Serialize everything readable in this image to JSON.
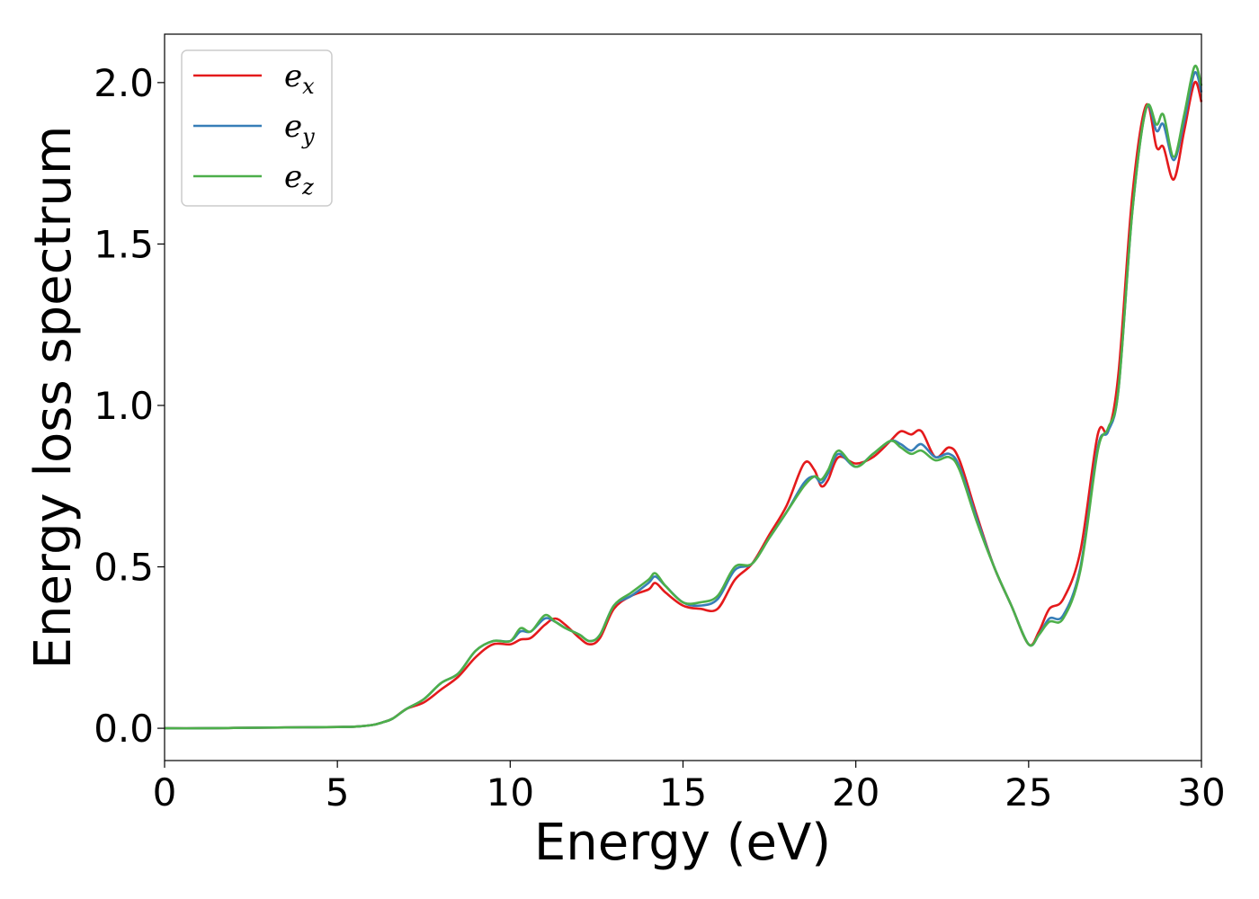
{
  "chart_data": {
    "type": "line",
    "title": "",
    "xlabel": "Energy (eV)",
    "ylabel": "Energy loss spectrum",
    "xlim": [
      0,
      30
    ],
    "ylim": [
      -0.1,
      2.15
    ],
    "xticks": [
      0,
      5,
      10,
      15,
      20,
      25,
      30
    ],
    "xtick_labels": [
      "0",
      "5",
      "10",
      "15",
      "20",
      "25",
      "30"
    ],
    "yticks": [
      0.0,
      0.5,
      1.0,
      1.5,
      2.0
    ],
    "ytick_labels": [
      "0.0",
      "0.5",
      "1.0",
      "1.5",
      "2.0"
    ],
    "grid": false,
    "legend_position": "upper-left",
    "x": [
      0,
      1,
      2,
      3,
      4,
      5,
      5.5,
      6,
      6.3,
      6.6,
      7,
      7.5,
      8,
      8.5,
      9,
      9.5,
      10,
      10.3,
      10.6,
      11,
      11.3,
      11.6,
      12,
      12.3,
      12.6,
      13,
      13.5,
      14,
      14.2,
      14.5,
      15,
      15.5,
      16,
      16.5,
      17,
      17.5,
      18,
      18.5,
      18.8,
      19,
      19.2,
      19.5,
      20,
      20.5,
      21,
      21.3,
      21.6,
      21.9,
      22.3,
      22.7,
      23,
      23.5,
      24,
      24.5,
      25,
      25.3,
      25.6,
      26,
      26.5,
      27,
      27.3,
      27.6,
      28,
      28.4,
      28.7,
      28.9,
      29.2,
      29.5,
      29.8,
      30
    ],
    "series": [
      {
        "name": "e_x",
        "label_base": "e",
        "label_sub": "x",
        "color": "#e41a1c",
        "values": [
          0,
          0,
          0.001,
          0.002,
          0.003,
          0.004,
          0.005,
          0.01,
          0.018,
          0.03,
          0.06,
          0.08,
          0.12,
          0.16,
          0.22,
          0.26,
          0.26,
          0.275,
          0.28,
          0.32,
          0.34,
          0.32,
          0.28,
          0.26,
          0.28,
          0.37,
          0.41,
          0.43,
          0.45,
          0.42,
          0.38,
          0.37,
          0.37,
          0.46,
          0.51,
          0.6,
          0.69,
          0.82,
          0.8,
          0.75,
          0.77,
          0.84,
          0.82,
          0.84,
          0.89,
          0.92,
          0.91,
          0.92,
          0.84,
          0.87,
          0.83,
          0.66,
          0.5,
          0.38,
          0.26,
          0.3,
          0.37,
          0.4,
          0.55,
          0.91,
          0.92,
          1.1,
          1.65,
          1.93,
          1.8,
          1.8,
          1.7,
          1.85,
          2.0,
          1.94
        ]
      },
      {
        "name": "e_y",
        "label_base": "e",
        "label_sub": "y",
        "color": "#377eb8",
        "values": [
          0,
          0,
          0.001,
          0.002,
          0.003,
          0.004,
          0.005,
          0.01,
          0.018,
          0.03,
          0.06,
          0.09,
          0.14,
          0.17,
          0.24,
          0.27,
          0.27,
          0.3,
          0.3,
          0.34,
          0.33,
          0.31,
          0.29,
          0.27,
          0.29,
          0.38,
          0.41,
          0.45,
          0.47,
          0.44,
          0.39,
          0.38,
          0.4,
          0.49,
          0.51,
          0.59,
          0.67,
          0.76,
          0.78,
          0.76,
          0.79,
          0.85,
          0.81,
          0.85,
          0.89,
          0.88,
          0.86,
          0.88,
          0.84,
          0.85,
          0.81,
          0.65,
          0.5,
          0.38,
          0.26,
          0.29,
          0.34,
          0.35,
          0.5,
          0.87,
          0.92,
          1.05,
          1.6,
          1.92,
          1.85,
          1.87,
          1.76,
          1.88,
          2.03,
          1.97
        ]
      },
      {
        "name": "e_z",
        "label_base": "e",
        "label_sub": "z",
        "color": "#4daf4a",
        "values": [
          0,
          0,
          0.001,
          0.002,
          0.003,
          0.004,
          0.005,
          0.01,
          0.018,
          0.03,
          0.06,
          0.09,
          0.14,
          0.17,
          0.24,
          0.27,
          0.27,
          0.31,
          0.3,
          0.35,
          0.33,
          0.31,
          0.29,
          0.27,
          0.29,
          0.38,
          0.42,
          0.46,
          0.48,
          0.44,
          0.39,
          0.39,
          0.41,
          0.5,
          0.51,
          0.59,
          0.67,
          0.75,
          0.78,
          0.77,
          0.8,
          0.86,
          0.81,
          0.85,
          0.89,
          0.87,
          0.85,
          0.86,
          0.83,
          0.84,
          0.8,
          0.64,
          0.5,
          0.38,
          0.26,
          0.29,
          0.33,
          0.34,
          0.49,
          0.86,
          0.93,
          1.05,
          1.6,
          1.92,
          1.87,
          1.9,
          1.77,
          1.9,
          2.05,
          1.99
        ]
      }
    ]
  }
}
